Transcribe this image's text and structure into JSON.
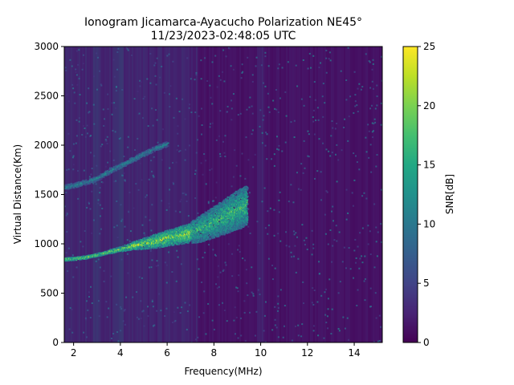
{
  "chart_data": {
    "type": "heatmap",
    "title_line1": "Ionogram Jicamarca-Ayacucho Polarization NE45°",
    "title_line2": "11/23/2023-02:48:05 UTC",
    "xlabel": "Frequency(MHz)",
    "ylabel": "Virtual Distance(Km)",
    "colorbar_label": "SNR[dB]",
    "xlim": [
      1.6,
      15.2
    ],
    "ylim": [
      0,
      3000
    ],
    "clim": [
      0,
      25
    ],
    "colormap": "viridis",
    "x_ticks": [
      2,
      4,
      6,
      8,
      10,
      12,
      14
    ],
    "y_ticks": [
      0,
      500,
      1000,
      1500,
      2000,
      2500,
      3000
    ],
    "colorbar_ticks": [
      0,
      5,
      10,
      15,
      20,
      25
    ],
    "grid": false,
    "traces": [
      {
        "label": "",
        "points": [
          [
            1.6,
            850
          ],
          [
            2.0,
            855
          ],
          [
            2.5,
            870
          ],
          [
            3.0,
            895
          ],
          [
            3.5,
            925
          ],
          [
            4.0,
            955
          ],
          [
            4.5,
            985
          ],
          [
            5.0,
            1010
          ],
          [
            5.5,
            1035
          ],
          [
            6.0,
            1065
          ],
          [
            6.5,
            1090
          ],
          [
            7.0,
            1120
          ]
        ],
        "snr": 25,
        "spread_km": [
          15,
          15,
          15,
          15,
          18,
          25,
          40,
          55,
          70,
          80,
          90,
          95
        ]
      },
      {
        "label": "",
        "points": [
          [
            7.0,
            1120
          ],
          [
            7.5,
            1170
          ],
          [
            8.0,
            1230
          ],
          [
            8.5,
            1290
          ],
          [
            9.0,
            1350
          ],
          [
            9.4,
            1400
          ]
        ],
        "snr": 20,
        "spread_km": [
          110,
          140,
          160,
          180,
          200,
          200
        ]
      },
      {
        "label": "",
        "points": [
          [
            1.6,
            1580
          ],
          [
            2.0,
            1600
          ],
          [
            2.5,
            1630
          ],
          [
            3.0,
            1670
          ],
          [
            3.5,
            1740
          ],
          [
            4.0,
            1800
          ],
          [
            4.5,
            1860
          ],
          [
            5.0,
            1920
          ],
          [
            5.5,
            1975
          ],
          [
            6.0,
            2020
          ]
        ],
        "snr": 14,
        "spread_km": [
          25,
          25,
          25,
          25,
          25,
          25,
          25,
          25,
          25,
          25
        ]
      }
    ]
  }
}
